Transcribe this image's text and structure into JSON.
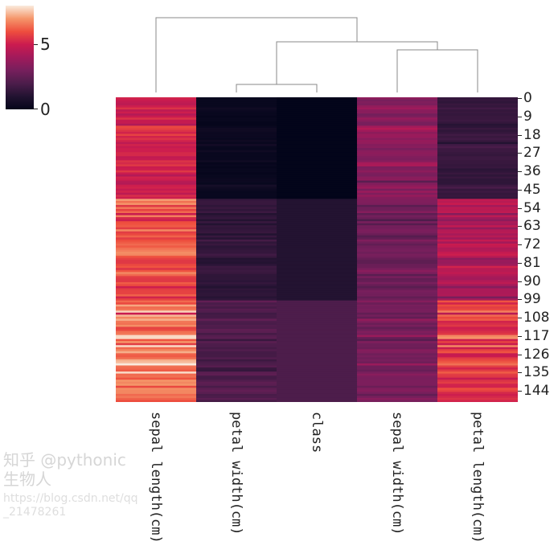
{
  "chart_data": {
    "type": "heatmap",
    "subtype": "clustermap",
    "colormap": "rocket",
    "vmin": 0,
    "vmax": 7.9,
    "colorbar": {
      "ticks": [
        0,
        5
      ],
      "position": "top-left"
    },
    "columns_order": [
      "sepal length(cm)",
      "petal width(cm)",
      "class",
      "sepal width(cm)",
      "petal length(cm)"
    ],
    "row_tick_labels": [
      "0",
      "9",
      "18",
      "27",
      "36",
      "45",
      "54",
      "63",
      "72",
      "81",
      "90",
      "99",
      "108",
      "117",
      "126",
      "135",
      "144"
    ],
    "dendrogram": {
      "merges": [
        [
          "petal width(cm)",
          "class"
        ],
        [
          "sepal width(cm)",
          "petal length(cm)"
        ],
        [
          "petal width(cm)+class",
          "sepal width(cm)+petal length(cm)"
        ],
        [
          "sepal length(cm)",
          "rest"
        ]
      ]
    },
    "row_fields": [
      "sepal length(cm)",
      "sepal width(cm)",
      "petal length(cm)",
      "petal width(cm)",
      "class"
    ],
    "rows": [
      [
        5.1,
        3.5,
        1.4,
        0.2,
        0
      ],
      [
        4.9,
        3.0,
        1.4,
        0.2,
        0
      ],
      [
        4.7,
        3.2,
        1.3,
        0.2,
        0
      ],
      [
        4.6,
        3.1,
        1.5,
        0.2,
        0
      ],
      [
        5.0,
        3.6,
        1.4,
        0.2,
        0
      ],
      [
        5.4,
        3.9,
        1.7,
        0.4,
        0
      ],
      [
        4.6,
        3.4,
        1.4,
        0.3,
        0
      ],
      [
        5.0,
        3.4,
        1.5,
        0.2,
        0
      ],
      [
        4.4,
        2.9,
        1.4,
        0.2,
        0
      ],
      [
        4.9,
        3.1,
        1.5,
        0.1,
        0
      ],
      [
        5.4,
        3.7,
        1.5,
        0.2,
        0
      ],
      [
        4.8,
        3.4,
        1.6,
        0.2,
        0
      ],
      [
        4.8,
        3.0,
        1.4,
        0.1,
        0
      ],
      [
        4.3,
        3.0,
        1.1,
        0.1,
        0
      ],
      [
        5.8,
        4.0,
        1.2,
        0.2,
        0
      ],
      [
        5.7,
        4.4,
        1.5,
        0.4,
        0
      ],
      [
        5.4,
        3.9,
        1.3,
        0.4,
        0
      ],
      [
        5.1,
        3.5,
        1.4,
        0.3,
        0
      ],
      [
        5.7,
        3.8,
        1.7,
        0.3,
        0
      ],
      [
        5.1,
        3.8,
        1.5,
        0.3,
        0
      ],
      [
        5.4,
        3.4,
        1.7,
        0.2,
        0
      ],
      [
        5.1,
        3.7,
        1.5,
        0.4,
        0
      ],
      [
        4.6,
        3.6,
        1.0,
        0.2,
        0
      ],
      [
        5.1,
        3.3,
        1.7,
        0.5,
        0
      ],
      [
        4.8,
        3.4,
        1.9,
        0.2,
        0
      ],
      [
        5.0,
        3.0,
        1.6,
        0.2,
        0
      ],
      [
        5.0,
        3.4,
        1.6,
        0.4,
        0
      ],
      [
        5.2,
        3.5,
        1.5,
        0.2,
        0
      ],
      [
        5.2,
        3.4,
        1.4,
        0.2,
        0
      ],
      [
        4.7,
        3.2,
        1.6,
        0.2,
        0
      ],
      [
        4.8,
        3.1,
        1.6,
        0.2,
        0
      ],
      [
        5.4,
        3.4,
        1.5,
        0.4,
        0
      ],
      [
        5.2,
        4.1,
        1.5,
        0.1,
        0
      ],
      [
        5.5,
        4.2,
        1.4,
        0.2,
        0
      ],
      [
        4.9,
        3.1,
        1.5,
        0.1,
        0
      ],
      [
        5.0,
        3.2,
        1.2,
        0.2,
        0
      ],
      [
        5.5,
        3.5,
        1.3,
        0.2,
        0
      ],
      [
        4.9,
        3.1,
        1.5,
        0.1,
        0
      ],
      [
        4.4,
        3.0,
        1.3,
        0.2,
        0
      ],
      [
        5.1,
        3.4,
        1.5,
        0.2,
        0
      ],
      [
        5.0,
        3.5,
        1.3,
        0.3,
        0
      ],
      [
        4.5,
        2.3,
        1.3,
        0.3,
        0
      ],
      [
        4.4,
        3.2,
        1.3,
        0.2,
        0
      ],
      [
        5.0,
        3.5,
        1.6,
        0.6,
        0
      ],
      [
        5.1,
        3.8,
        1.9,
        0.4,
        0
      ],
      [
        4.8,
        3.0,
        1.4,
        0.3,
        0
      ],
      [
        5.1,
        3.8,
        1.6,
        0.2,
        0
      ],
      [
        4.6,
        3.2,
        1.4,
        0.2,
        0
      ],
      [
        5.3,
        3.7,
        1.5,
        0.2,
        0
      ],
      [
        5.0,
        3.3,
        1.4,
        0.2,
        0
      ],
      [
        7.0,
        3.2,
        4.7,
        1.4,
        1
      ],
      [
        6.4,
        3.2,
        4.5,
        1.5,
        1
      ],
      [
        6.9,
        3.1,
        4.9,
        1.5,
        1
      ],
      [
        5.5,
        2.3,
        4.0,
        1.3,
        1
      ],
      [
        6.5,
        2.8,
        4.6,
        1.5,
        1
      ],
      [
        5.7,
        2.8,
        4.5,
        1.3,
        1
      ],
      [
        6.3,
        3.3,
        4.7,
        1.6,
        1
      ],
      [
        4.9,
        2.4,
        3.3,
        1.0,
        1
      ],
      [
        6.6,
        2.9,
        4.6,
        1.3,
        1
      ],
      [
        5.2,
        2.7,
        3.9,
        1.4,
        1
      ],
      [
        5.0,
        2.0,
        3.5,
        1.0,
        1
      ],
      [
        5.9,
        3.0,
        4.2,
        1.5,
        1
      ],
      [
        6.0,
        2.2,
        4.0,
        1.0,
        1
      ],
      [
        6.1,
        2.9,
        4.7,
        1.4,
        1
      ],
      [
        5.6,
        2.9,
        3.6,
        1.3,
        1
      ],
      [
        6.7,
        3.1,
        4.4,
        1.4,
        1
      ],
      [
        5.6,
        3.0,
        4.5,
        1.5,
        1
      ],
      [
        5.8,
        2.7,
        4.1,
        1.0,
        1
      ],
      [
        6.2,
        2.2,
        4.5,
        1.5,
        1
      ],
      [
        5.6,
        2.5,
        3.9,
        1.1,
        1
      ],
      [
        5.9,
        3.2,
        4.8,
        1.8,
        1
      ],
      [
        6.1,
        2.8,
        4.0,
        1.3,
        1
      ],
      [
        6.3,
        2.5,
        4.9,
        1.5,
        1
      ],
      [
        6.1,
        2.8,
        4.7,
        1.2,
        1
      ],
      [
        6.4,
        2.9,
        4.3,
        1.3,
        1
      ],
      [
        6.6,
        3.0,
        4.4,
        1.4,
        1
      ],
      [
        6.8,
        2.8,
        4.8,
        1.4,
        1
      ],
      [
        6.7,
        3.0,
        5.0,
        1.7,
        1
      ],
      [
        6.0,
        2.9,
        4.5,
        1.5,
        1
      ],
      [
        5.7,
        2.6,
        3.5,
        1.0,
        1
      ],
      [
        5.5,
        2.4,
        3.8,
        1.1,
        1
      ],
      [
        5.5,
        2.4,
        3.7,
        1.0,
        1
      ],
      [
        5.8,
        2.7,
        3.9,
        1.2,
        1
      ],
      [
        6.0,
        2.7,
        5.1,
        1.6,
        1
      ],
      [
        5.4,
        3.0,
        4.5,
        1.5,
        1
      ],
      [
        6.0,
        3.4,
        4.5,
        1.6,
        1
      ],
      [
        6.7,
        3.1,
        4.7,
        1.5,
        1
      ],
      [
        6.3,
        2.3,
        4.4,
        1.3,
        1
      ],
      [
        5.6,
        3.0,
        4.1,
        1.3,
        1
      ],
      [
        5.5,
        2.5,
        4.0,
        1.3,
        1
      ],
      [
        5.5,
        2.6,
        4.4,
        1.2,
        1
      ],
      [
        6.1,
        3.0,
        4.6,
        1.4,
        1
      ],
      [
        5.8,
        2.6,
        4.0,
        1.2,
        1
      ],
      [
        5.0,
        2.3,
        3.3,
        1.0,
        1
      ],
      [
        5.6,
        2.7,
        4.2,
        1.3,
        1
      ],
      [
        5.7,
        3.0,
        4.2,
        1.2,
        1
      ],
      [
        5.7,
        2.9,
        4.2,
        1.3,
        1
      ],
      [
        6.2,
        2.9,
        4.3,
        1.3,
        1
      ],
      [
        5.1,
        2.5,
        3.0,
        1.1,
        1
      ],
      [
        5.7,
        2.8,
        4.1,
        1.3,
        1
      ],
      [
        6.3,
        3.3,
        6.0,
        2.5,
        2
      ],
      [
        5.8,
        2.7,
        5.1,
        1.9,
        2
      ],
      [
        7.1,
        3.0,
        5.9,
        2.1,
        2
      ],
      [
        6.3,
        2.9,
        5.6,
        1.8,
        2
      ],
      [
        6.5,
        3.0,
        5.8,
        2.2,
        2
      ],
      [
        7.6,
        3.0,
        6.6,
        2.1,
        2
      ],
      [
        4.9,
        2.5,
        4.5,
        1.7,
        2
      ],
      [
        7.3,
        2.9,
        6.3,
        1.8,
        2
      ],
      [
        6.7,
        2.5,
        5.8,
        1.8,
        2
      ],
      [
        7.2,
        3.6,
        6.1,
        2.5,
        2
      ],
      [
        6.5,
        3.2,
        5.1,
        2.0,
        2
      ],
      [
        6.4,
        2.7,
        5.3,
        1.9,
        2
      ],
      [
        6.8,
        3.0,
        5.5,
        2.1,
        2
      ],
      [
        5.7,
        2.5,
        5.0,
        2.0,
        2
      ],
      [
        5.8,
        2.8,
        5.1,
        2.4,
        2
      ],
      [
        6.4,
        3.2,
        5.3,
        2.3,
        2
      ],
      [
        6.5,
        3.0,
        5.5,
        1.8,
        2
      ],
      [
        7.7,
        3.8,
        6.7,
        2.2,
        2
      ],
      [
        7.7,
        2.6,
        6.9,
        2.3,
        2
      ],
      [
        6.0,
        2.2,
        5.0,
        1.5,
        2
      ],
      [
        6.9,
        3.2,
        5.7,
        2.3,
        2
      ],
      [
        5.6,
        2.8,
        4.9,
        2.0,
        2
      ],
      [
        7.7,
        2.8,
        6.7,
        2.0,
        2
      ],
      [
        6.3,
        2.7,
        4.9,
        1.8,
        2
      ],
      [
        6.7,
        3.3,
        5.7,
        2.1,
        2
      ],
      [
        7.2,
        3.2,
        6.0,
        1.8,
        2
      ],
      [
        6.2,
        2.8,
        4.8,
        1.8,
        2
      ],
      [
        6.1,
        3.0,
        4.9,
        1.8,
        2
      ],
      [
        6.4,
        2.8,
        5.6,
        2.1,
        2
      ],
      [
        7.2,
        3.0,
        5.8,
        1.6,
        2
      ],
      [
        7.4,
        2.8,
        6.1,
        1.9,
        2
      ],
      [
        7.9,
        3.8,
        6.4,
        2.0,
        2
      ],
      [
        6.4,
        2.8,
        5.6,
        2.2,
        2
      ],
      [
        6.3,
        2.8,
        5.1,
        1.5,
        2
      ],
      [
        6.1,
        2.6,
        5.6,
        1.4,
        2
      ],
      [
        7.7,
        3.0,
        6.1,
        2.3,
        2
      ],
      [
        6.3,
        3.4,
        5.6,
        2.4,
        2
      ],
      [
        6.4,
        3.1,
        5.5,
        1.8,
        2
      ],
      [
        6.0,
        3.0,
        4.8,
        1.8,
        2
      ],
      [
        6.9,
        3.1,
        5.4,
        2.1,
        2
      ],
      [
        6.7,
        3.1,
        5.6,
        2.4,
        2
      ],
      [
        6.9,
        3.1,
        5.1,
        2.3,
        2
      ],
      [
        5.8,
        2.7,
        5.1,
        1.9,
        2
      ],
      [
        6.8,
        3.2,
        5.9,
        2.3,
        2
      ],
      [
        6.7,
        3.3,
        5.7,
        2.5,
        2
      ],
      [
        6.7,
        3.0,
        5.2,
        2.3,
        2
      ],
      [
        6.3,
        2.5,
        5.0,
        1.9,
        2
      ],
      [
        6.5,
        3.0,
        5.2,
        2.0,
        2
      ],
      [
        6.2,
        3.4,
        5.4,
        2.3,
        2
      ],
      [
        5.9,
        3.0,
        5.1,
        1.8,
        2
      ]
    ]
  },
  "watermark": {
    "line1": "知乎 @pythonic生物人",
    "line2": "https://blog.csdn.net/qq_21478261"
  },
  "colors": {
    "dendrogram": "#888888",
    "text": "#222222"
  }
}
